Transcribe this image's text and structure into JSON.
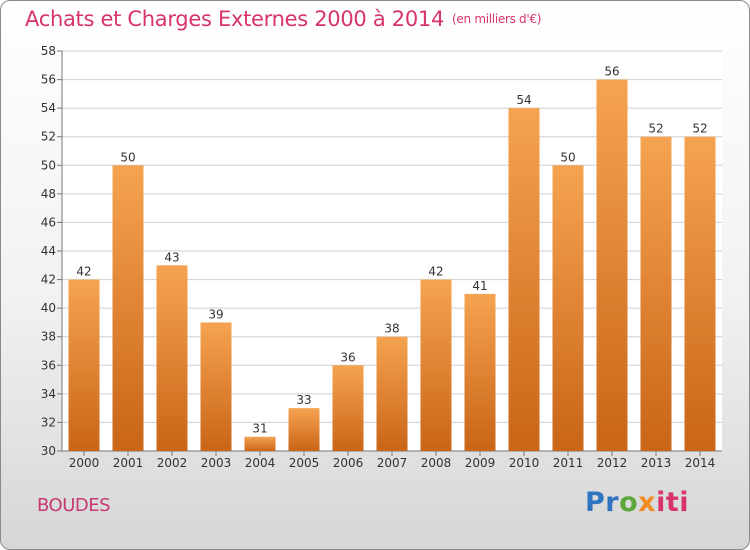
{
  "title": "Achats et Charges Externes 2000 à 2014",
  "unit_note": "(en milliers d'€)",
  "commune": "BOUDES",
  "logo": {
    "p1": "Pr",
    "p2": "o",
    "p3": "x",
    "p4": "iti"
  },
  "colors": {
    "title": "#d8336e",
    "bar_light": "#f5a352",
    "bar_dark": "#c96516",
    "grid": "#cfcfcf"
  },
  "chart_data": {
    "type": "bar",
    "categories": [
      "2000",
      "2001",
      "2002",
      "2003",
      "2004",
      "2005",
      "2006",
      "2007",
      "2008",
      "2009",
      "2010",
      "2011",
      "2012",
      "2013",
      "2014"
    ],
    "values": [
      42,
      50,
      43,
      39,
      31,
      33,
      36,
      38,
      42,
      41,
      54,
      50,
      56,
      52,
      52
    ],
    "ylim": [
      30,
      58
    ],
    "yticks": [
      30,
      32,
      34,
      36,
      38,
      40,
      42,
      44,
      46,
      48,
      50,
      52,
      54,
      56,
      58
    ],
    "grid": true,
    "legend": "none"
  }
}
